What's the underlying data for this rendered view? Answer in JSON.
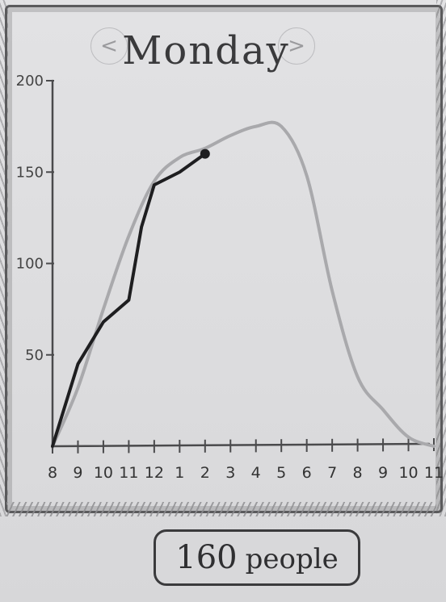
{
  "title": "Monday",
  "nav": {
    "prev_icon": "chevron-left-icon",
    "next_icon": "chevron-right-icon",
    "next_glyph": ">",
    "prev_glyph": "<"
  },
  "selected": {
    "count": "160",
    "unit": "people",
    "hour_label": "2"
  },
  "colors": {
    "ink": "#1e1e20",
    "pencil": "#a9a9ac",
    "axis": "#4a4a4c"
  },
  "chart_data": {
    "type": "line",
    "title": "Monday",
    "xlabel": "",
    "ylabel": "",
    "x_tick_labels": [
      "8",
      "9",
      "10",
      "11",
      "12",
      "1",
      "2",
      "3",
      "4",
      "5",
      "6",
      "7",
      "8",
      "9",
      "10",
      "11"
    ],
    "y_tick_labels": [
      "50",
      "100",
      "150",
      "200"
    ],
    "ylim": [
      0,
      200
    ],
    "xlim": [
      0,
      15
    ],
    "grid": false,
    "series": [
      {
        "name": "",
        "style": "typical",
        "x": [
          0,
          1,
          2,
          3,
          4,
          5,
          6,
          7,
          8,
          9,
          10,
          11,
          12,
          13,
          14,
          15
        ],
        "y": [
          0,
          32,
          75,
          115,
          145,
          158,
          163,
          170,
          175,
          175,
          148,
          85,
          38,
          20,
          5,
          0
        ]
      },
      {
        "name": "",
        "style": "live",
        "x": [
          0,
          1,
          2,
          3,
          3.5,
          4,
          5,
          6
        ],
        "y": [
          0,
          45,
          68,
          80,
          120,
          143,
          150,
          160
        ]
      }
    ],
    "highlight_point": {
      "x": 6,
      "y": 160
    }
  }
}
